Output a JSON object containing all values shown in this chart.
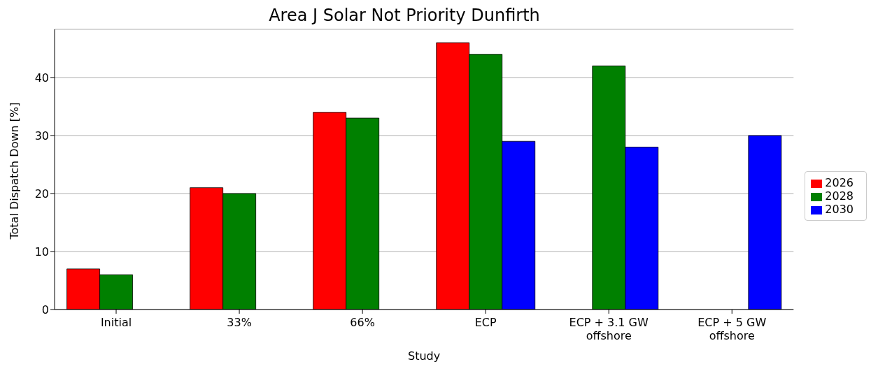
{
  "chart_data": {
    "type": "bar",
    "title": "Area J Solar Not Priority Dunfirth",
    "xlabel": "Study",
    "ylabel": "Total Dispatch Down [%]",
    "categories": [
      "Initial",
      "33%",
      "66%",
      "ECP",
      "ECP + 3.1 GW offshore",
      "ECP + 5 GW offshore"
    ],
    "series": [
      {
        "name": "2026",
        "color": "#ff0000",
        "values": [
          7,
          21,
          34,
          46,
          null,
          null
        ]
      },
      {
        "name": "2028",
        "color": "#008000",
        "values": [
          6,
          20,
          33,
          44,
          42,
          null
        ]
      },
      {
        "name": "2030",
        "color": "#0000ff",
        "values": [
          null,
          null,
          null,
          29,
          28,
          30
        ]
      }
    ],
    "ylim": [
      0,
      48.3
    ],
    "yticks": [
      0,
      10,
      20,
      30,
      40
    ],
    "grid": "y",
    "legend": "right"
  }
}
